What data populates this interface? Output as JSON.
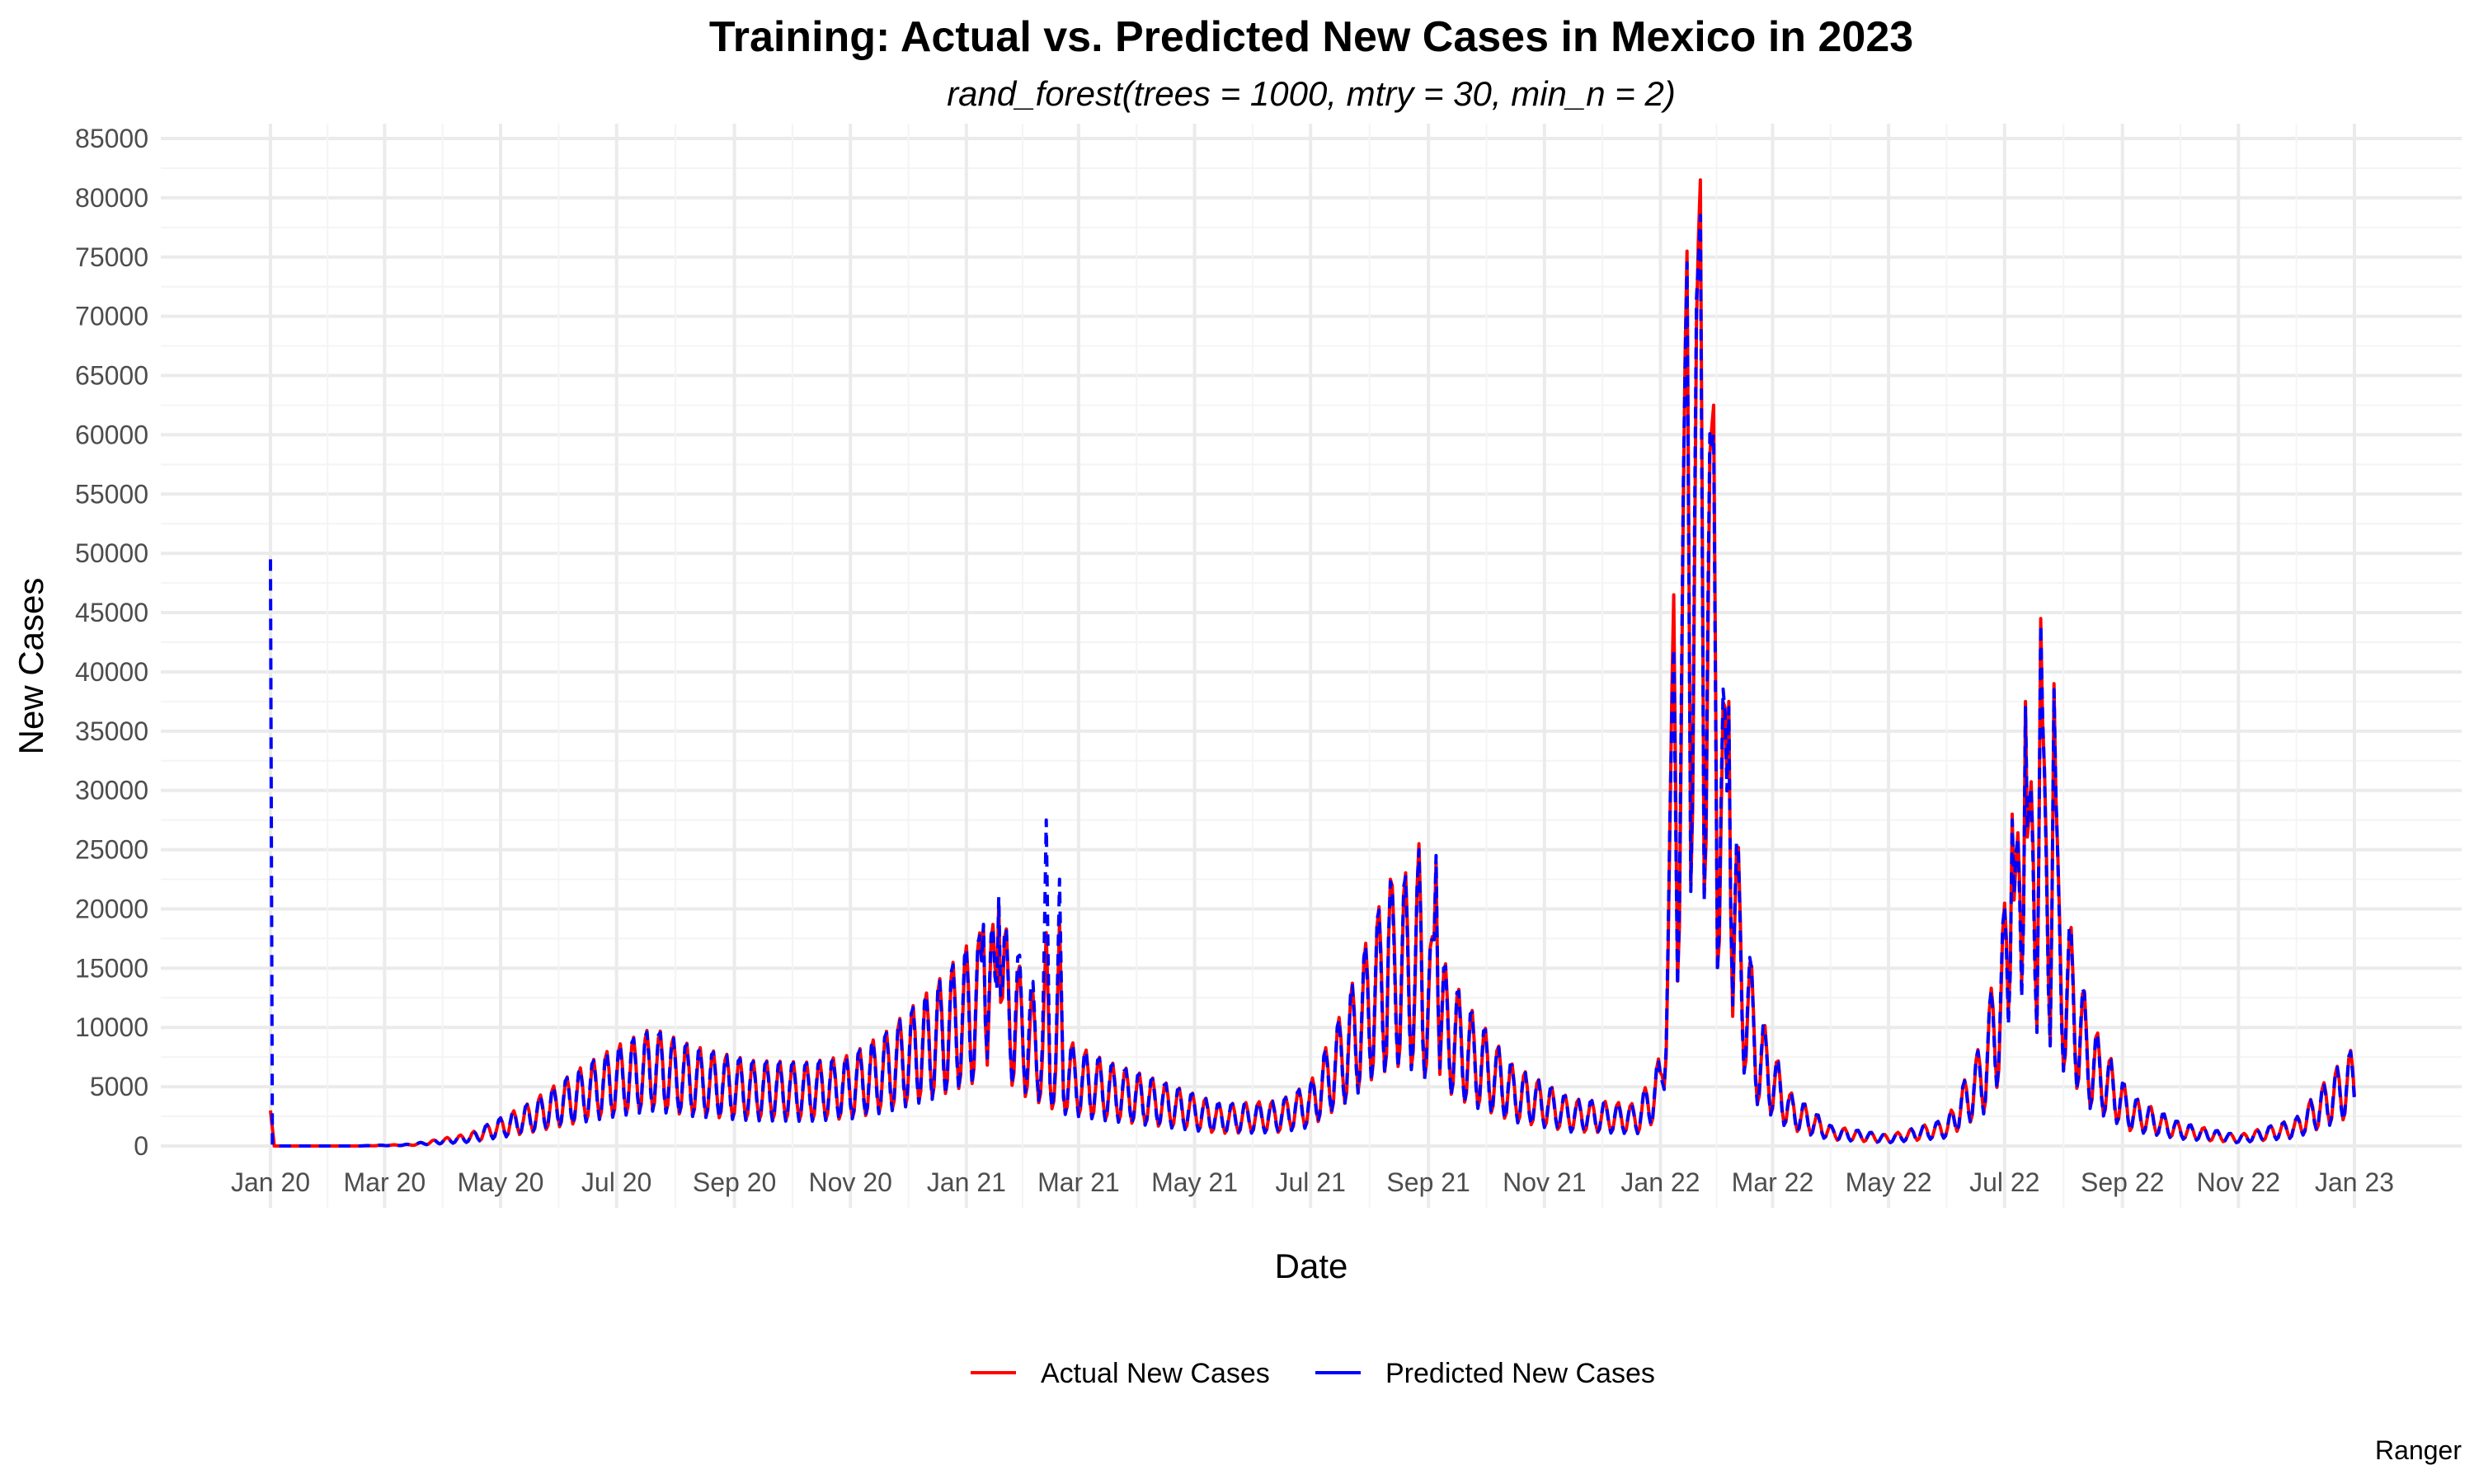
{
  "chart_data": {
    "type": "line",
    "title": "Training: Actual vs. Predicted New Cases in Mexico in 2023",
    "subtitle": "rand_forest(trees = 1000, mtry = 30, min_n = 2)",
    "xlabel": "Date",
    "ylabel": "New Cases",
    "caption": "Ranger",
    "x_range": [
      "2020-01-01",
      "2023-01-01"
    ],
    "ylim": [
      0,
      85000
    ],
    "x_ticks": [
      {
        "date": "2020-01-01",
        "label": "Jan 20"
      },
      {
        "date": "2020-03-01",
        "label": "Mar 20"
      },
      {
        "date": "2020-05-01",
        "label": "May 20"
      },
      {
        "date": "2020-07-01",
        "label": "Jul 20"
      },
      {
        "date": "2020-09-01",
        "label": "Sep 20"
      },
      {
        "date": "2020-11-01",
        "label": "Nov 20"
      },
      {
        "date": "2021-01-01",
        "label": "Jan 21"
      },
      {
        "date": "2021-03-01",
        "label": "Mar 21"
      },
      {
        "date": "2021-05-01",
        "label": "May 21"
      },
      {
        "date": "2021-07-01",
        "label": "Jul 21"
      },
      {
        "date": "2021-09-01",
        "label": "Sep 21"
      },
      {
        "date": "2021-11-01",
        "label": "Nov 21"
      },
      {
        "date": "2022-01-01",
        "label": "Jan 22"
      },
      {
        "date": "2022-03-01",
        "label": "Mar 22"
      },
      {
        "date": "2022-05-01",
        "label": "May 22"
      },
      {
        "date": "2022-07-01",
        "label": "Jul 22"
      },
      {
        "date": "2022-09-01",
        "label": "Sep 22"
      },
      {
        "date": "2022-11-01",
        "label": "Nov 22"
      },
      {
        "date": "2023-01-01",
        "label": "Jan 23"
      }
    ],
    "y_ticks": [
      0,
      5000,
      10000,
      15000,
      20000,
      25000,
      30000,
      35000,
      40000,
      45000,
      50000,
      55000,
      60000,
      65000,
      70000,
      75000,
      80000,
      85000
    ],
    "grid": true,
    "legend_position": "bottom",
    "series": [
      {
        "name": "Actual New Cases",
        "color": "#ff0000",
        "style": "solid",
        "points": [
          [
            "2020-01-01",
            3000
          ],
          [
            "2020-01-03",
            0
          ],
          [
            "2020-02-15",
            0
          ],
          [
            "2020-03-15",
            100
          ],
          [
            "2020-04-15",
            700
          ],
          [
            "2020-05-15",
            2300
          ],
          [
            "2020-06-15",
            4500
          ],
          [
            "2020-07-01",
            5500
          ],
          [
            "2020-07-20",
            6500
          ],
          [
            "2020-08-10",
            5500
          ],
          [
            "2020-09-10",
            4700
          ],
          [
            "2020-10-10",
            4600
          ],
          [
            "2020-11-01",
            5000
          ],
          [
            "2020-11-20",
            6300
          ],
          [
            "2020-12-15",
            8800
          ],
          [
            "2021-01-05",
            11500
          ],
          [
            "2021-01-20",
            12500
          ],
          [
            "2021-02-01",
            9000
          ],
          [
            "2021-02-20",
            6000
          ],
          [
            "2021-03-15",
            4700
          ],
          [
            "2021-04-15",
            3500
          ],
          [
            "2021-05-15",
            2300
          ],
          [
            "2021-06-15",
            2500
          ],
          [
            "2021-07-01",
            3500
          ],
          [
            "2021-07-20",
            8000
          ],
          [
            "2021-08-05",
            13000
          ],
          [
            "2021-08-20",
            15000
          ],
          [
            "2021-09-05",
            11000
          ],
          [
            "2021-09-20",
            8000
          ],
          [
            "2021-10-15",
            4500
          ],
          [
            "2021-11-15",
            2600
          ],
          [
            "2021-12-20",
            2300
          ],
          [
            "2022-01-01",
            5000
          ],
          [
            "2022-01-10",
            30000
          ],
          [
            "2022-01-18",
            50000
          ],
          [
            "2022-01-25",
            45000
          ],
          [
            "2022-02-05",
            22000
          ],
          [
            "2022-02-20",
            8000
          ],
          [
            "2022-03-10",
            3000
          ],
          [
            "2022-04-01",
            1100
          ],
          [
            "2022-05-01",
            600
          ],
          [
            "2022-06-01",
            1500
          ],
          [
            "2022-06-20",
            6000
          ],
          [
            "2022-07-05",
            16000
          ],
          [
            "2022-07-20",
            22000
          ],
          [
            "2022-08-01",
            14000
          ],
          [
            "2022-08-15",
            7000
          ],
          [
            "2022-09-05",
            2800
          ],
          [
            "2022-10-01",
            1300
          ],
          [
            "2022-11-01",
            600
          ],
          [
            "2022-12-01",
            1500
          ],
          [
            "2022-12-20",
            4000
          ],
          [
            "2023-01-01",
            5500
          ]
        ]
      },
      {
        "name": "Predicted New Cases",
        "color": "#0000ff",
        "style": "dashed",
        "points": [
          [
            "2020-01-01",
            49500
          ],
          [
            "2020-01-02",
            0
          ],
          [
            "2020-02-15",
            0
          ],
          [
            "2020-03-15",
            100
          ],
          [
            "2020-04-15",
            700
          ],
          [
            "2020-05-15",
            2300
          ],
          [
            "2020-06-15",
            4500
          ],
          [
            "2020-07-01",
            5500
          ],
          [
            "2020-07-20",
            6500
          ],
          [
            "2020-08-10",
            5500
          ],
          [
            "2020-09-10",
            4700
          ],
          [
            "2020-10-10",
            4600
          ],
          [
            "2020-11-01",
            5000
          ],
          [
            "2020-11-20",
            6300
          ],
          [
            "2020-12-15",
            8800
          ],
          [
            "2021-01-05",
            11500
          ],
          [
            "2021-01-20",
            12500
          ],
          [
            "2021-02-01",
            10000
          ],
          [
            "2021-02-20",
            6000
          ],
          [
            "2021-03-15",
            4700
          ],
          [
            "2021-04-15",
            3500
          ],
          [
            "2021-05-15",
            2300
          ],
          [
            "2021-06-15",
            2500
          ],
          [
            "2021-07-01",
            3500
          ],
          [
            "2021-07-20",
            8000
          ],
          [
            "2021-08-05",
            13000
          ],
          [
            "2021-08-20",
            15000
          ],
          [
            "2021-09-05",
            11000
          ],
          [
            "2021-09-20",
            8000
          ],
          [
            "2021-10-15",
            4500
          ],
          [
            "2021-11-15",
            2600
          ],
          [
            "2021-12-20",
            2300
          ],
          [
            "2022-01-01",
            5000
          ],
          [
            "2022-01-10",
            30000
          ],
          [
            "2022-01-18",
            50000
          ],
          [
            "2022-01-25",
            45000
          ],
          [
            "2022-02-05",
            22000
          ],
          [
            "2022-02-20",
            8000
          ],
          [
            "2022-03-10",
            3000
          ],
          [
            "2022-04-01",
            1100
          ],
          [
            "2022-05-01",
            600
          ],
          [
            "2022-06-01",
            1500
          ],
          [
            "2022-06-20",
            6000
          ],
          [
            "2022-07-05",
            16000
          ],
          [
            "2022-07-20",
            22000
          ],
          [
            "2022-08-01",
            14000
          ],
          [
            "2022-08-15",
            7000
          ],
          [
            "2022-09-05",
            2800
          ],
          [
            "2022-10-01",
            1300
          ],
          [
            "2022-11-01",
            600
          ],
          [
            "2022-12-01",
            1500
          ],
          [
            "2022-12-20",
            4000
          ],
          [
            "2023-01-01",
            5500
          ]
        ]
      }
    ],
    "annotated_peaks": [
      {
        "date": "2021-01-10",
        "actual": 18500,
        "predicted": 18700
      },
      {
        "date": "2021-01-18",
        "actual": 20500,
        "predicted": 21000
      },
      {
        "date": "2021-02-12",
        "actual": 18000,
        "predicted": 27500
      },
      {
        "date": "2021-02-19",
        "actual": 19000,
        "predicted": 22500
      },
      {
        "date": "2021-08-12",
        "actual": 22500,
        "predicted": 22300
      },
      {
        "date": "2021-08-27",
        "actual": 25500,
        "predicted": 25000
      },
      {
        "date": "2021-09-05",
        "actual": 24000,
        "predicted": 24500
      },
      {
        "date": "2022-01-08",
        "actual": 46500,
        "predicted": 42000
      },
      {
        "date": "2022-01-15",
        "actual": 75500,
        "predicted": 74500
      },
      {
        "date": "2022-01-22",
        "actual": 81500,
        "predicted": 78500
      },
      {
        "date": "2022-01-29",
        "actual": 62500,
        "predicted": 60000
      },
      {
        "date": "2022-02-06",
        "actual": 37500,
        "predicted": 37000
      },
      {
        "date": "2022-07-05",
        "actual": 28000,
        "predicted": 27500
      },
      {
        "date": "2022-07-12",
        "actual": 37500,
        "predicted": 37000
      },
      {
        "date": "2022-07-20",
        "actual": 44500,
        "predicted": 44000
      },
      {
        "date": "2022-07-27",
        "actual": 39000,
        "predicted": 38500
      }
    ]
  }
}
